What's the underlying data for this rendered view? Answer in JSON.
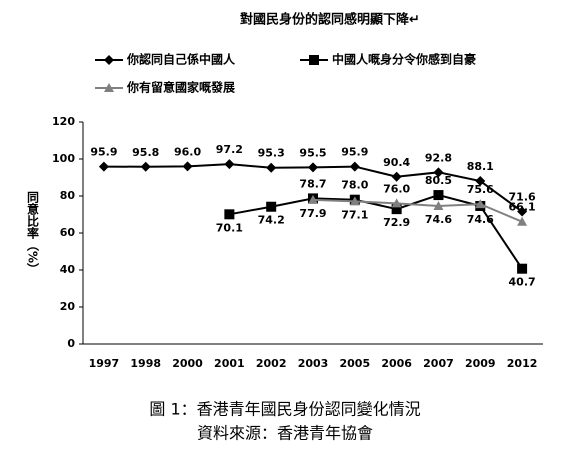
{
  "chart_data": {
    "type": "line",
    "title": "對國民身份的認同感明顯下降↵",
    "y_label": "同意比率（%）",
    "categories": [
      "1997",
      "1998",
      "2000",
      "2001",
      "2002",
      "2003",
      "2005",
      "2006",
      "2007",
      "2009",
      "2012"
    ],
    "series": [
      {
        "name": "你認同自己係中國人",
        "color": "#000000",
        "marker": "diamond",
        "values": [
          95.9,
          95.8,
          96.0,
          97.2,
          95.3,
          95.5,
          95.9,
          90.4,
          92.8,
          88.1,
          71.6
        ],
        "value_labels": [
          "95.9",
          "95.8",
          "96.0",
          "97.2",
          "95.3",
          "95.5",
          "95.9",
          "90.4",
          "92.8",
          "88.1",
          "71.6"
        ]
      },
      {
        "name": "中國人嘅身分令你感到自豪",
        "color": "#000000",
        "marker": "square",
        "values": [
          null,
          null,
          null,
          70.1,
          74.2,
          78.7,
          78.0,
          72.9,
          80.5,
          74.6,
          40.7
        ],
        "value_labels": [
          null,
          null,
          null,
          "70.1",
          "74.2",
          "78.7",
          "78.0",
          "72.9",
          "80.5",
          "74.6",
          "40.7"
        ]
      },
      {
        "name": "你有留意國家嘅發展",
        "color": "#808080",
        "marker": "triangle",
        "values": [
          null,
          null,
          null,
          null,
          null,
          77.9,
          77.1,
          76.0,
          74.6,
          75.6,
          66.1
        ],
        "value_labels": [
          null,
          null,
          null,
          null,
          null,
          "77.9",
          "77.1",
          "76.0",
          "74.6",
          "75.6",
          "66.1"
        ]
      }
    ],
    "ylim": [
      0,
      120
    ],
    "yticks": [
      0,
      20,
      40,
      60,
      80,
      100,
      120
    ],
    "caption": [
      "圖 1：香港青年國民身份認同變化情況",
      "資料來源：香港青年協會"
    ]
  }
}
